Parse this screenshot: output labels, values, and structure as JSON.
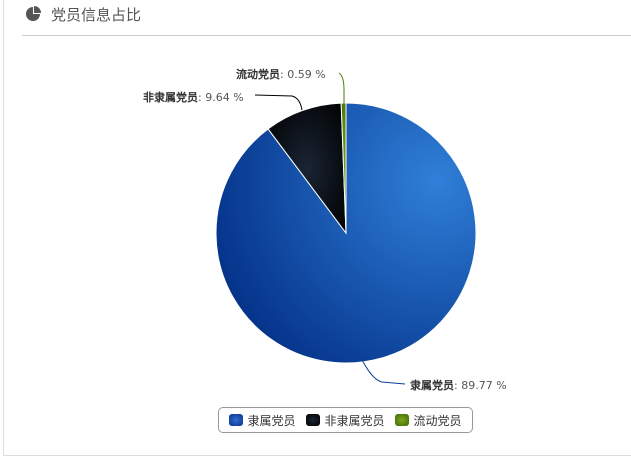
{
  "header": {
    "title": "党员信息占比",
    "icon": "pie-chart-icon"
  },
  "chart_data": {
    "type": "pie",
    "categories": [
      "隶属党员",
      "非隶属党员",
      "流动党员"
    ],
    "values": [
      89.77,
      9.64,
      0.59
    ],
    "labels": [
      "隶属党员: 89.77 %",
      "非隶属党员: 9.64 %",
      "流动党员: 0.59 %"
    ],
    "colors": [
      "#0a3e9c",
      "#05080f",
      "#4a7a0a"
    ],
    "legend": [
      "隶属党员",
      "非隶属党员",
      "流动党员"
    ],
    "legend_position": "bottom"
  }
}
